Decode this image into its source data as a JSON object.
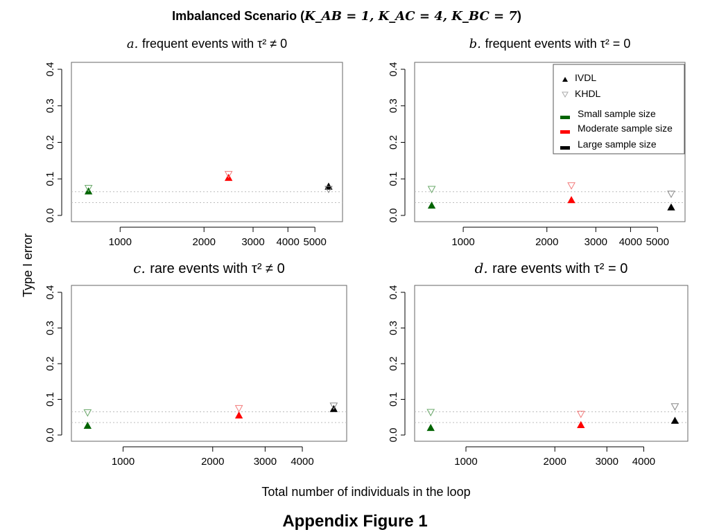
{
  "figure": {
    "title_prefix": "Imbalanced Scenario (",
    "title_math": "K_AB = 1, K_AC = 4, K_BC = 7",
    "title_suffix": ")",
    "ylabel": "Type I error",
    "xlabel": "Total number of individuals in the loop",
    "caption": "Appendix Figure 1"
  },
  "legend": {
    "items": [
      {
        "label": "IVDL",
        "marker": "filled-up-triangle",
        "color": "#000000"
      },
      {
        "label": "KHDL",
        "marker": "open-down-triangle",
        "color": "#aaaaaa"
      },
      {
        "label": "Small sample size",
        "marker": "bar",
        "color": "#006400"
      },
      {
        "label": "Moderate sample size",
        "marker": "bar",
        "color": "#ff0000"
      },
      {
        "label": "Large sample size",
        "marker": "bar",
        "color": "#000000"
      }
    ]
  },
  "chart_data": [
    {
      "type": "scatter",
      "panel": "a",
      "title_letter": "a.",
      "title": "frequent events with τ² ≠ 0",
      "xscale": "log",
      "xlim": [
        700,
        6000
      ],
      "ylim": [
        0,
        0.4
      ],
      "xticks": [
        1000,
        2000,
        3000,
        4000,
        5000
      ],
      "xticklabels": [
        "1000",
        "2000",
        "3000",
        "4000",
        "5000"
      ],
      "yticks": [
        0.0,
        0.1,
        0.2,
        0.3,
        0.4
      ],
      "yticklabels": [
        "0.0",
        "0.1",
        "0.2",
        "0.3",
        "0.4"
      ],
      "reference_lines": [
        0.035,
        0.065
      ],
      "series": [
        {
          "name": "IVDL",
          "points": [
            {
              "x": 770,
              "y": 0.066,
              "size": "Small sample size",
              "color": "#006400"
            },
            {
              "x": 2450,
              "y": 0.103,
              "size": "Moderate sample size",
              "color": "#ff0000"
            },
            {
              "x": 5600,
              "y": 0.079,
              "size": "Large sample size",
              "color": "#000000"
            }
          ]
        },
        {
          "name": "KHDL",
          "points": [
            {
              "x": 770,
              "y": 0.075,
              "size": "Small sample size",
              "color": "#006400"
            },
            {
              "x": 2450,
              "y": 0.113,
              "size": "Moderate sample size",
              "color": "#ff0000"
            },
            {
              "x": 5600,
              "y": 0.072,
              "size": "Large sample size",
              "color": "#000000"
            }
          ]
        }
      ]
    },
    {
      "type": "scatter",
      "panel": "b",
      "title_letter": "b.",
      "title": "frequent events with τ² = 0",
      "xscale": "log",
      "xlim": [
        700,
        6000
      ],
      "ylim": [
        0,
        0.4
      ],
      "xticks": [
        1000,
        2000,
        3000,
        4000,
        5000
      ],
      "xticklabels": [
        "1000",
        "2000",
        "3000",
        "4000",
        "5000"
      ],
      "yticks": [
        0.0,
        0.1,
        0.2,
        0.3,
        0.4
      ],
      "yticklabels": [
        "0.0",
        "0.1",
        "0.2",
        "0.3",
        "0.4"
      ],
      "reference_lines": [
        0.035,
        0.065
      ],
      "series": [
        {
          "name": "IVDL",
          "points": [
            {
              "x": 770,
              "y": 0.027,
              "size": "Small sample size",
              "color": "#006400"
            },
            {
              "x": 2450,
              "y": 0.042,
              "size": "Moderate sample size",
              "color": "#ff0000"
            },
            {
              "x": 5600,
              "y": 0.022,
              "size": "Large sample size",
              "color": "#000000"
            }
          ]
        },
        {
          "name": "KHDL",
          "points": [
            {
              "x": 770,
              "y": 0.072,
              "size": "Small sample size",
              "color": "#006400"
            },
            {
              "x": 2450,
              "y": 0.082,
              "size": "Moderate sample size",
              "color": "#ff0000"
            },
            {
              "x": 5600,
              "y": 0.059,
              "size": "Large sample size",
              "color": "#000000"
            }
          ]
        }
      ]
    },
    {
      "type": "scatter",
      "panel": "c",
      "title_letter": "c.",
      "title": "rare events with τ² ≠ 0",
      "xscale": "log",
      "xlim": [
        700,
        5400
      ],
      "ylim": [
        0,
        0.4
      ],
      "xticks": [
        1000,
        2000,
        3000,
        4000
      ],
      "xticklabels": [
        "1000",
        "2000",
        "3000",
        "4000"
      ],
      "yticks": [
        0.0,
        0.1,
        0.2,
        0.3,
        0.4
      ],
      "yticklabels": [
        "0.0",
        "0.1",
        "0.2",
        "0.3",
        "0.4"
      ],
      "reference_lines": [
        0.035,
        0.065
      ],
      "series": [
        {
          "name": "IVDL",
          "points": [
            {
              "x": 760,
              "y": 0.026,
              "size": "Small sample size",
              "color": "#006400"
            },
            {
              "x": 2450,
              "y": 0.055,
              "size": "Moderate sample size",
              "color": "#ff0000"
            },
            {
              "x": 5100,
              "y": 0.073,
              "size": "Large sample size",
              "color": "#000000"
            }
          ]
        },
        {
          "name": "KHDL",
          "points": [
            {
              "x": 760,
              "y": 0.063,
              "size": "Small sample size",
              "color": "#006400"
            },
            {
              "x": 2450,
              "y": 0.075,
              "size": "Moderate sample size",
              "color": "#ff0000"
            },
            {
              "x": 5100,
              "y": 0.082,
              "size": "Large sample size",
              "color": "#000000"
            }
          ]
        }
      ]
    },
    {
      "type": "scatter",
      "panel": "d",
      "title_letter": "d.",
      "title": "rare events with τ² = 0",
      "xscale": "log",
      "xlim": [
        700,
        5400
      ],
      "ylim": [
        0,
        0.4
      ],
      "xticks": [
        1000,
        2000,
        3000,
        4000
      ],
      "xticklabels": [
        "1000",
        "2000",
        "3000",
        "4000"
      ],
      "yticks": [
        0.0,
        0.1,
        0.2,
        0.3,
        0.4
      ],
      "yticklabels": [
        "0.0",
        "0.1",
        "0.2",
        "0.3",
        "0.4"
      ],
      "reference_lines": [
        0.035,
        0.065
      ],
      "series": [
        {
          "name": "IVDL",
          "points": [
            {
              "x": 760,
              "y": 0.02,
              "size": "Small sample size",
              "color": "#006400"
            },
            {
              "x": 2450,
              "y": 0.028,
              "size": "Moderate sample size",
              "color": "#ff0000"
            },
            {
              "x": 5100,
              "y": 0.04,
              "size": "Large sample size",
              "color": "#000000"
            }
          ]
        },
        {
          "name": "KHDL",
          "points": [
            {
              "x": 760,
              "y": 0.064,
              "size": "Small sample size",
              "color": "#006400"
            },
            {
              "x": 2450,
              "y": 0.059,
              "size": "Moderate sample size",
              "color": "#ff0000"
            },
            {
              "x": 5100,
              "y": 0.08,
              "size": "Large sample size",
              "color": "#000000"
            }
          ]
        }
      ]
    }
  ]
}
